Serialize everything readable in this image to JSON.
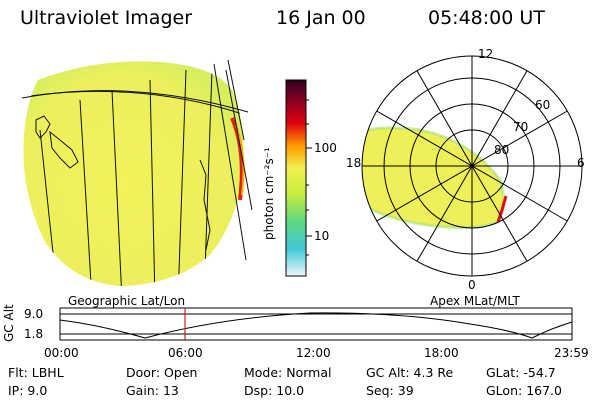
{
  "header": {
    "instrument": "Ultraviolet Imager",
    "date": "16 Jan 00",
    "time": "05:48:00 UT"
  },
  "colorbar": {
    "label": "photon cm⁻²s⁻¹",
    "ticks": [
      "100",
      "10"
    ],
    "colors": [
      "#e8f4f4",
      "#40c8d8",
      "#60d880",
      "#c8ec40",
      "#f0f050",
      "#ffa000",
      "#e00010",
      "#8c0020",
      "#300020"
    ]
  },
  "left_panel": {
    "caption": "Geographic Lat/Lon"
  },
  "right_panel": {
    "caption": "Apex MLat/MLT",
    "mlt_labels": {
      "top": "12",
      "left": "18",
      "right": "6",
      "bottom": "0"
    },
    "lat_labels": [
      "60",
      "70",
      "80"
    ]
  },
  "altitude_plot": {
    "ylabel": "GC Alt",
    "y_ticks": [
      "9.0",
      "1.8"
    ],
    "x_ticks": [
      "00:00",
      "06:00",
      "12:00",
      "18:00",
      "23:59"
    ],
    "current_time": "05:48",
    "marker_color": "#d02020"
  },
  "info": {
    "flt_label": "Flt:",
    "flt_value": "LBHL",
    "door_label": "Door:",
    "door_value": "Open",
    "mode_label": "Mode:",
    "mode_value": "Normal",
    "gcalt_label": "GC Alt:",
    "gcalt_value": "4.3 Re",
    "glat_label": "GLat:",
    "glat_value": "-54.7",
    "ip_label": "IP:",
    "ip_value": "9.0",
    "gain_label": "Gain:",
    "gain_value": "13",
    "dsp_label": "Dsp:",
    "dsp_value": "10.0",
    "seq_label": "Seq:",
    "seq_value": "39",
    "glon_label": "GLon:",
    "glon_value": "167.0"
  }
}
